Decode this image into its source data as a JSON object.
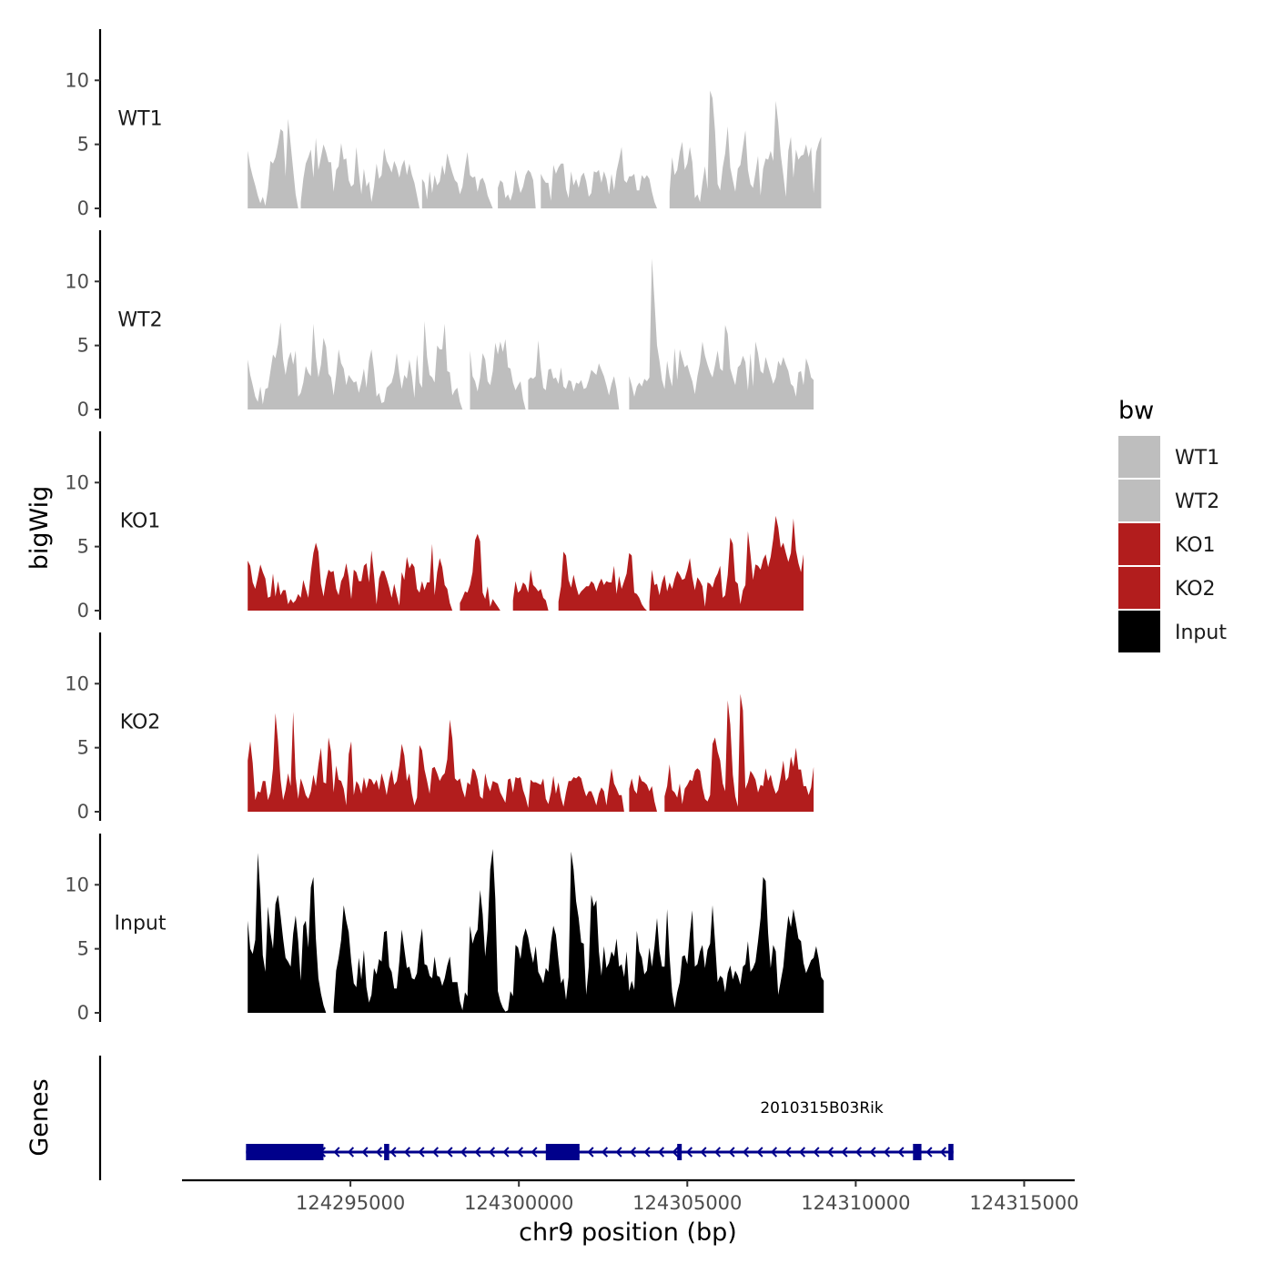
{
  "chart_data": {
    "type": "area",
    "ylabel": "bigWig",
    "xlabel": "chr9 position (bp)",
    "genes_label": "Genes",
    "xlim": [
      124290000,
      124316500
    ],
    "x_ticks": [
      124295000,
      124300000,
      124305000,
      124310000,
      124315000
    ],
    "x_tick_labels": [
      "124295000",
      "124300000",
      "124305000",
      "124310000",
      "124315000"
    ],
    "ylim": [
      0,
      14
    ],
    "y_ticks": [
      0,
      5,
      10
    ],
    "y_tick_labels": [
      "0",
      "5",
      "10"
    ],
    "x_start": 124291950,
    "x_step": 75,
    "legend_title": "bw",
    "series": [
      {
        "name": "WT1",
        "color": "#bebebe",
        "values": [
          4.5,
          3.3,
          2.5,
          1.8,
          1.0,
          0.4,
          0.9,
          0.2,
          1.5,
          3.7,
          3.5,
          4.0,
          5.0,
          6.2,
          6.0,
          2.5,
          7.0,
          5.0,
          3.0,
          1.1,
          0.0,
          0.5,
          2.3,
          3.5,
          4.0,
          4.6,
          2.4,
          5.5,
          3.0,
          4.0,
          5.0,
          4.4,
          3.6,
          3.6,
          1.3,
          3.0,
          3.3,
          5.1,
          3.8,
          3.9,
          2.2,
          1.7,
          1.9,
          4.8,
          2.8,
          1.1,
          3.1,
          1.7,
          2.1,
          0.5,
          1.7,
          3.5,
          2.3,
          2.6,
          4.7,
          3.7,
          3.3,
          2.8,
          3.7,
          3.2,
          2.4,
          3.3,
          3.8,
          2.6,
          3.5,
          2.6,
          2.0,
          1.0,
          0.0,
          2.3,
          2.0,
          0.7,
          2.9,
          1.2,
          2.6,
          1.8,
          2.1,
          3.4,
          2.6,
          4.3,
          3.5,
          2.8,
          2.2,
          2.0,
          1.1,
          1.7,
          3.2,
          4.4,
          2.6,
          2.4,
          2.5,
          1.3,
          2.2,
          2.4,
          1.9,
          1.0,
          0.5,
          0.0,
          0.0,
          1.6,
          2.2,
          2.0,
          0.8,
          1.1,
          0.6,
          1.3,
          3.0,
          2.0,
          1.2,
          1.7,
          2.6,
          3.0,
          2.8,
          2.2,
          0.0,
          0.0,
          2.7,
          2.3,
          2.0,
          2.0,
          0.6,
          3.4,
          2.7,
          3.2,
          3.5,
          3.5,
          1.5,
          0.8,
          2.9,
          1.8,
          2.3,
          1.6,
          2.5,
          2.8,
          2.1,
          0.9,
          1.2,
          2.9,
          2.8,
          3.0,
          2.0,
          2.9,
          2.3,
          1.1,
          2.7,
          1.4,
          2.9,
          3.8,
          4.8,
          2.2,
          2.0,
          2.5,
          2.5,
          2.7,
          1.4,
          1.4,
          2.6,
          2.3,
          2.6,
          2.3,
          1.3,
          0.5,
          0.0,
          0.0,
          0.0,
          0.0,
          0.0,
          1.3,
          4.0,
          2.6,
          3.0,
          4.4,
          5.2,
          3.0,
          3.5,
          4.8,
          3.6,
          0.8,
          1.1,
          0.5,
          2.0,
          3.3,
          1.5,
          9.2,
          8.6,
          6.0,
          1.9,
          1.4,
          3.2,
          4.3,
          6.4,
          3.2,
          2.2,
          1.3,
          3.1,
          3.4,
          4.8,
          6.1,
          3.0,
          1.9,
          1.6,
          2.8,
          4.1,
          1.0,
          3.1,
          3.9,
          3.8,
          4.5,
          3.7,
          8.4,
          6.7,
          4.2,
          2.6,
          0.9,
          4.5,
          5.6,
          2.4,
          4.6,
          3.8,
          4.1,
          4.2,
          5.0,
          4.0,
          4.8,
          1.2,
          4.4,
          5.1,
          5.6
        ]
      },
      {
        "name": "WT2",
        "color": "#bebebe",
        "values": [
          3.9,
          2.7,
          1.9,
          1.0,
          0.6,
          1.8,
          0.4,
          1.6,
          1.7,
          3.0,
          4.3,
          4.0,
          5.1,
          6.8,
          3.9,
          2.7,
          3.9,
          4.5,
          3.5,
          4.6,
          1.0,
          1.3,
          2.1,
          3.4,
          2.9,
          2.6,
          6.7,
          4.1,
          2.5,
          3.5,
          5.6,
          4.9,
          2.8,
          2.5,
          1.1,
          2.7,
          4.7,
          3.6,
          3.2,
          1.9,
          2.7,
          2.4,
          2.1,
          2.2,
          1.3,
          2.1,
          3.2,
          1.7,
          3.8,
          4.7,
          3.1,
          1.0,
          1.3,
          0.5,
          0.6,
          1.7,
          1.9,
          2.1,
          2.9,
          4.4,
          2.8,
          1.6,
          2.7,
          2.4,
          3.9,
          2.6,
          0.9,
          4.3,
          2.1,
          1.7,
          6.9,
          4.1,
          2.7,
          2.5,
          2.1,
          5.0,
          4.7,
          4.7,
          6.7,
          3.0,
          2.9,
          1.1,
          1.5,
          1.7,
          0.6,
          0.0,
          0.0,
          0.0,
          4.6,
          2.6,
          2.2,
          1.4,
          2.5,
          4.4,
          3.9,
          2.2,
          1.9,
          3.0,
          5.2,
          4.3,
          5.3,
          4.5,
          5.5,
          3.3,
          3.2,
          2.1,
          1.5,
          1.9,
          2.2,
          0.8,
          0.0,
          2.3,
          2.5,
          2.4,
          2.6,
          5.4,
          3.2,
          1.7,
          1.5,
          3.1,
          3.2,
          2.4,
          2.5,
          2.0,
          3.3,
          1.8,
          1.6,
          2.3,
          2.2,
          1.4,
          2.1,
          2.0,
          2.3,
          1.6,
          1.7,
          2.3,
          3.1,
          2.9,
          2.7,
          3.6,
          3.1,
          2.6,
          1.9,
          1.1,
          2.0,
          2.6,
          1.6,
          0.0,
          0.0,
          0.0,
          0.0,
          2.6,
          1.9,
          1.0,
          1.8,
          2.1,
          1.8,
          2.4,
          2.2,
          2.5,
          11.8,
          8.5,
          5.0,
          3.8,
          2.3,
          1.6,
          3.8,
          2.6,
          1.8,
          4.8,
          2.3,
          4.7,
          4.0,
          3.3,
          3.5,
          2.8,
          2.2,
          1.2,
          2.6,
          3.6,
          5.3,
          4.2,
          3.5,
          2.9,
          2.5,
          3.5,
          4.6,
          3.2,
          3.0,
          6.6,
          5.9,
          3.2,
          2.5,
          1.9,
          3.3,
          3.5,
          4.2,
          3.7,
          1.5,
          4.4,
          1.8,
          5.3,
          4.4,
          3.0,
          2.8,
          4.1,
          3.4,
          2.7,
          2.0,
          2.5,
          3.8,
          3.4,
          4.1,
          3.5,
          3.0,
          2.0,
          1.8,
          1.0,
          2.9,
          3.0,
          1.9,
          4.0,
          3.4,
          2.5,
          2.3
        ]
      },
      {
        "name": "KO1",
        "color": "#b21d1d",
        "values": [
          3.9,
          3.5,
          2.2,
          1.7,
          2.6,
          3.6,
          3.0,
          2.5,
          1.0,
          1.1,
          2.9,
          1.1,
          2.3,
          1.2,
          1.6,
          1.6,
          0.5,
          0.9,
          0.6,
          0.8,
          1.3,
          1.0,
          2.4,
          1.7,
          1.0,
          3.0,
          4.5,
          5.3,
          4.6,
          2.1,
          1.1,
          2.4,
          3.2,
          3.0,
          3.1,
          1.7,
          1.2,
          2.3,
          2.7,
          3.7,
          2.6,
          0.9,
          3.2,
          3.0,
          2.3,
          2.3,
          3.5,
          3.7,
          2.2,
          4.7,
          2.8,
          0.5,
          2.5,
          3.1,
          3.1,
          2.5,
          1.8,
          1.0,
          2.1,
          1.2,
          0.4,
          3.0,
          2.4,
          4.2,
          3.3,
          3.7,
          3.4,
          1.7,
          1.4,
          2.3,
          1.6,
          2.2,
          2.2,
          5.2,
          1.2,
          3.0,
          4.1,
          3.4,
          2.0,
          1.7,
          0.6,
          0.0,
          0.0,
          0.0,
          0.6,
          1.0,
          1.5,
          1.4,
          2.0,
          3.0,
          5.5,
          6.0,
          5.4,
          1.4,
          0.9,
          1.9,
          0.3,
          0.9,
          0.6,
          0.3,
          0.0,
          0.0,
          0.0,
          0.0,
          0.0,
          0.8,
          2.3,
          1.4,
          1.6,
          2.2,
          2.0,
          1.4,
          3.2,
          2.0,
          1.8,
          1.5,
          1.7,
          1.0,
          0.8,
          0.0,
          0.0,
          0.0,
          0.0,
          0.7,
          1.9,
          4.6,
          4.3,
          2.4,
          1.8,
          2.8,
          1.9,
          1.2,
          1.5,
          1.7,
          1.9,
          1.9,
          2.3,
          2.1,
          1.5,
          2.1,
          2.5,
          2.0,
          2.3,
          2.2,
          2.2,
          3.5,
          1.3,
          2.7,
          1.7,
          2.3,
          2.9,
          4.5,
          4.3,
          1.4,
          1.3,
          1.0,
          0.5,
          0.2,
          0.0,
          0.7,
          3.2,
          2.0,
          2.1,
          1.2,
          2.2,
          2.8,
          1.5,
          2.2,
          1.7,
          2.5,
          3.1,
          2.8,
          2.4,
          2.5,
          3.2,
          4.1,
          2.6,
          1.6,
          2.6,
          2.3,
          1.9,
          0.3,
          2.2,
          2.1,
          1.8,
          2.5,
          2.9,
          3.5,
          1.0,
          1.2,
          2.8,
          5.7,
          5.2,
          2.3,
          2.1,
          0.5,
          1.6,
          2.0,
          6.2,
          4.4,
          2.4,
          3.6,
          3.5,
          3.2,
          4.0,
          4.4,
          3.4,
          4.2,
          5.6,
          7.4,
          6.5,
          4.9,
          5.3,
          4.5,
          3.8,
          4.5,
          7.2,
          4.7,
          3.7,
          3.0,
          4.4
        ]
      },
      {
        "name": "KO2",
        "color": "#b21d1d",
        "values": [
          4.0,
          5.5,
          3.8,
          0.9,
          1.6,
          1.5,
          2.4,
          2.4,
          0.9,
          1.5,
          3.4,
          7.7,
          5.5,
          2.5,
          0.9,
          1.7,
          3.0,
          2.0,
          7.8,
          2.7,
          1.0,
          2.6,
          2.0,
          1.3,
          1.0,
          1.6,
          2.9,
          2.0,
          3.7,
          5.0,
          2.3,
          2.2,
          5.8,
          4.7,
          1.5,
          3.6,
          2.5,
          2.4,
          1.8,
          0.5,
          4.5,
          5.5,
          1.3,
          2.4,
          2.1,
          1.4,
          2.7,
          1.8,
          2.6,
          2.5,
          2.1,
          2.5,
          1.7,
          3.0,
          2.3,
          1.3,
          2.5,
          3.3,
          2.1,
          2.4,
          3.6,
          5.3,
          4.4,
          2.4,
          3.0,
          1.4,
          0.5,
          1.1,
          5.2,
          4.8,
          3.3,
          2.4,
          1.4,
          3.4,
          3.5,
          3.0,
          2.4,
          2.8,
          3.0,
          4.1,
          7.2,
          5.7,
          2.6,
          2.4,
          2.6,
          1.7,
          1.1,
          2.3,
          2.1,
          3.4,
          3.2,
          2.5,
          1.2,
          1.0,
          3.0,
          2.1,
          1.6,
          2.4,
          2.3,
          2.2,
          1.5,
          1.1,
          0.7,
          2.5,
          2.6,
          1.5,
          2.7,
          2.6,
          2.7,
          1.7,
          1.1,
          0.3,
          2.5,
          2.3,
          2.3,
          2.2,
          2.1,
          2.6,
          1.0,
          0.6,
          1.5,
          2.8,
          1.4,
          2.3,
          1.1,
          0.4,
          1.5,
          2.4,
          2.4,
          2.7,
          2.6,
          2.8,
          2.6,
          1.8,
          1.2,
          1.6,
          1.6,
          1.1,
          0.5,
          1.4,
          1.9,
          1.6,
          0.5,
          2.0,
          3.4,
          2.2,
          1.8,
          1.3,
          1.3,
          0.0,
          0.0,
          1.8,
          2.6,
          1.7,
          1.4,
          2.9,
          2.4,
          2.3,
          2.1,
          1.6,
          2.0,
          0.8,
          0.0,
          0.0,
          0.0,
          1.2,
          2.0,
          3.7,
          1.7,
          1.5,
          1.1,
          2.2,
          0.6,
          1.8,
          2.1,
          2.5,
          2.4,
          3.2,
          3.4,
          3.2,
          1.9,
          1.0,
          0.8,
          1.3,
          5.3,
          5.8,
          4.7,
          4.0,
          2.2,
          1.6,
          8.7,
          6.8,
          2.9,
          1.2,
          0.4,
          9.2,
          7.9,
          1.8,
          2.3,
          3.2,
          2.9,
          2.5,
          1.5,
          2.1,
          2.0,
          3.4,
          2.4,
          2.9,
          2.0,
          1.4,
          1.7,
          2.7,
          4.0,
          2.4,
          2.7,
          4.3,
          3.5,
          5.0,
          3.3,
          3.3,
          2.0,
          2.0,
          1.3,
          1.9,
          3.5
        ]
      },
      {
        "name": "Input",
        "color": "#000000",
        "values": [
          7.2,
          5.0,
          4.6,
          5.7,
          12.5,
          9.3,
          4.5,
          3.2,
          8.3,
          6.3,
          5.0,
          8.5,
          9.2,
          7.6,
          5.8,
          4.3,
          4.0,
          3.6,
          6.2,
          7.6,
          5.6,
          2.5,
          6.8,
          7.2,
          5.1,
          9.8,
          10.6,
          5.8,
          2.7,
          1.5,
          0.6,
          0.0,
          0.0,
          0.0,
          0.4,
          3.3,
          4.3,
          5.7,
          8.4,
          7.2,
          6.3,
          4.0,
          2.3,
          2.0,
          4.3,
          2.6,
          4.9,
          2.0,
          0.8,
          1.4,
          3.5,
          3.0,
          4.2,
          4.0,
          6.3,
          6.4,
          3.6,
          3.2,
          1.9,
          1.9,
          4.0,
          6.5,
          5.0,
          3.5,
          3.6,
          2.7,
          2.6,
          3.1,
          5.2,
          6.6,
          3.8,
          3.7,
          2.9,
          2.7,
          4.4,
          2.9,
          2.8,
          2.1,
          2.7,
          3.7,
          4.4,
          2.4,
          2.4,
          2.4,
          0.9,
          0.2,
          1.6,
          1.3,
          6.8,
          5.4,
          6.1,
          6.5,
          9.6,
          7.7,
          4.4,
          6.5,
          11.2,
          12.8,
          8.9,
          1.7,
          0.9,
          0.4,
          0.1,
          0.2,
          1.7,
          1.3,
          5.3,
          5.1,
          4.2,
          5.9,
          6.6,
          5.9,
          4.8,
          3.9,
          5.2,
          3.2,
          2.8,
          2.3,
          3.5,
          3.2,
          5.5,
          6.8,
          6.1,
          4.1,
          2.3,
          2.7,
          1.0,
          2.8,
          12.6,
          11.2,
          8.7,
          7.4,
          5.5,
          5.4,
          1.4,
          3.6,
          9.2,
          8.3,
          8.8,
          4.8,
          2.9,
          5.2,
          3.5,
          3.9,
          4.8,
          4.4,
          5.8,
          3.6,
          3.8,
          2.8,
          4.8,
          1.7,
          2.5,
          1.8,
          6.4,
          4.8,
          4.3,
          3.0,
          3.3,
          5.1,
          3.6,
          5.2,
          7.4,
          4.8,
          3.6,
          3.6,
          8.1,
          4.4,
          1.6,
          0.4,
          1.6,
          2.4,
          4.4,
          4.5,
          3.8,
          6.2,
          8.0,
          3.6,
          3.8,
          4.8,
          5.3,
          3.5,
          4.9,
          5.4,
          8.4,
          5.5,
          2.4,
          2.9,
          2.7,
          1.6,
          3.1,
          3.7,
          2.6,
          3.3,
          2.9,
          2.2,
          3.6,
          3.8,
          5.6,
          3.2,
          3.5,
          4.0,
          5.6,
          7.4,
          10.6,
          10.3,
          6.2,
          3.5,
          5.3,
          4.8,
          1.4,
          2.5,
          3.6,
          5.8,
          7.6,
          6.7,
          8.1,
          7.0,
          5.8,
          5.6,
          3.9,
          3.1,
          3.6,
          4.1,
          4.3,
          5.2,
          4.2,
          2.8,
          2.5
        ]
      }
    ],
    "genes": [
      {
        "name": "2010315B03Rik",
        "strand": "-",
        "start": 124291900,
        "end": 124312900,
        "color": "#00008b",
        "exons": [
          [
            124291900,
            124294200
          ],
          [
            124296000,
            124296150
          ],
          [
            124300800,
            124301800
          ],
          [
            124304700,
            124304800
          ],
          [
            124311700,
            124311950
          ],
          [
            124312750,
            124312900
          ]
        ]
      }
    ]
  }
}
